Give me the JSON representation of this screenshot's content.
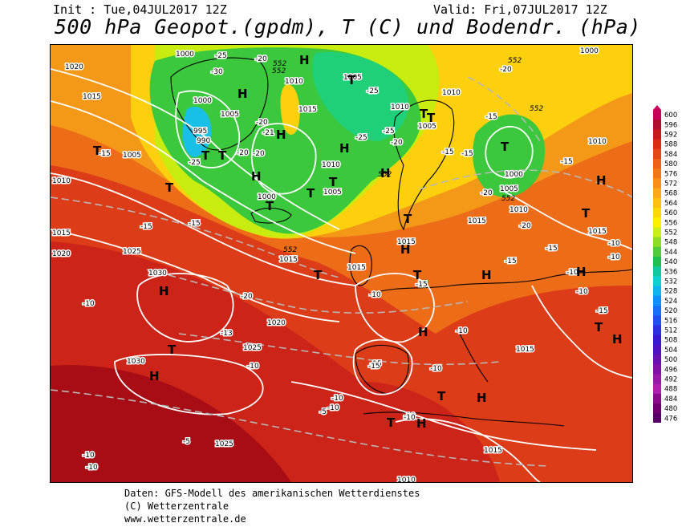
{
  "header": {
    "init": "Init : Tue,04JUL2017 12Z",
    "valid": "Valid: Fri,07JUL2017 12Z",
    "title": "500 hPa Geopot.(gpdm), T (C) und Bodendr. (hPa)"
  },
  "legend": {
    "levels": [
      "600",
      "596",
      "592",
      "588",
      "584",
      "580",
      "576",
      "572",
      "568",
      "564",
      "560",
      "556",
      "552",
      "548",
      "544",
      "540",
      "536",
      "532",
      "528",
      "524",
      "520",
      "516",
      "512",
      "508",
      "504",
      "500",
      "496",
      "492",
      "488",
      "484",
      "480",
      "476"
    ],
    "colors": [
      "#c8005a",
      "#b01030",
      "#c81c1c",
      "#dc2c14",
      "#e44818",
      "#ec6018",
      "#f07818",
      "#f89018",
      "#fca818",
      "#fcc010",
      "#fcd808",
      "#fcf000",
      "#c8f018",
      "#8cdc28",
      "#50cc3c",
      "#20c050",
      "#10c8a0",
      "#10d0d0",
      "#10b4f0",
      "#1090f8",
      "#1870f8",
      "#2050f0",
      "#2c30e0",
      "#3818d0",
      "#5010c0",
      "#6810b0",
      "#8010a8",
      "#9818a8",
      "#b020b0",
      "#8a0c8a",
      "#700070",
      "#58006a"
    ]
  },
  "map": {
    "colors": {
      "deep_red": "#a80c14",
      "red": "#cc2418",
      "red_orange": "#dc3c18",
      "orange": "#ec6c18",
      "amber": "#f49818",
      "yellow": "#fcd00c",
      "lime": "#c8ec10",
      "green": "#3cc83c",
      "bright_green": "#20d078",
      "cyan": "#18c0e8"
    },
    "pressure_labels": [
      "1020",
      "1015",
      "1005",
      "1000",
      "990",
      "995",
      "1005",
      "1010",
      "1015",
      "1000",
      "1005",
      "1010",
      "1005",
      "1000",
      "1010",
      "1015",
      "1030",
      "1025",
      "1020",
      "1030",
      "1025",
      "1015",
      "1010",
      "1000",
      "1005",
      "1010",
      "1015",
      "1010",
      "1000",
      "1015",
      "1005",
      "1010",
      "1015",
      "1010",
      "1005",
      "1015",
      "1015",
      "1025",
      "1020",
      "1015",
      "1010",
      "552",
      "552",
      "552",
      "552",
      "552",
      "552",
      "552"
    ],
    "temperature_labels": [
      "-25",
      "-20",
      "-30",
      "-25",
      "-20",
      "-20",
      "-21",
      "-20",
      "-25",
      "-25",
      "-20",
      "-25",
      "-15",
      "-15",
      "-15",
      "-20",
      "-15",
      "-15",
      "-15",
      "-15",
      "-20",
      "-15",
      "-10",
      "-10",
      "-10",
      "-10",
      "-10",
      "-15",
      "-15",
      "-20",
      "-15",
      "-10",
      "-10",
      "-10",
      "-13",
      "-10",
      "-10",
      "-10",
      "-10",
      "-15",
      "-5",
      "-5",
      "-10",
      "-10",
      "-10",
      "-20",
      "-25",
      "-20",
      "-15",
      "-15",
      "-10"
    ],
    "pressure_systems": [
      "T",
      "T",
      "T",
      "T",
      "T",
      "T",
      "T",
      "T",
      "T",
      "T",
      "T",
      "T",
      "T",
      "T",
      "T",
      "T",
      "T",
      "T",
      "T",
      "H",
      "H",
      "H",
      "H",
      "H",
      "H",
      "H",
      "H",
      "H",
      "H",
      "H",
      "H",
      "H",
      "H",
      "H",
      "H"
    ]
  },
  "footer": {
    "line1": "Daten: GFS-Modell des amerikanischen Wetterdienstes",
    "line2": "(C) Wetterzentrale",
    "line3": "www.wetterzentrale.de"
  }
}
